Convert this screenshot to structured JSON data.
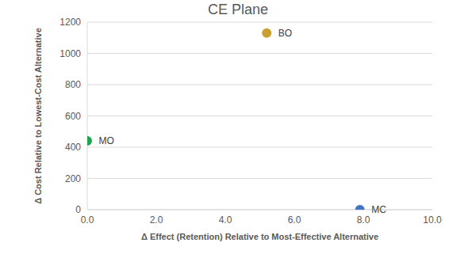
{
  "chart_data": {
    "type": "scatter",
    "title": "CE Plane",
    "x_label": "Δ Effect (Retention) Relative to Most-Effective Alternative",
    "y_label": "Δ Cost Relative to Lowest-Cost Alternative",
    "series": [
      {
        "name": "MO",
        "color": "#21a450",
        "x": [
          0.0
        ],
        "values": [
          440
        ]
      },
      {
        "name": "BO",
        "color": "#c9a030",
        "x": [
          5.2
        ],
        "values": [
          1130
        ]
      },
      {
        "name": "MC",
        "color": "#4472c4",
        "x": [
          7.9
        ],
        "values": [
          0
        ]
      }
    ],
    "xlim": [
      0,
      10
    ],
    "xticks": [
      {
        "value": 0,
        "label": "0.0"
      },
      {
        "value": 2,
        "label": "2.0"
      },
      {
        "value": 4,
        "label": "4.0"
      },
      {
        "value": 6,
        "label": "6.0"
      },
      {
        "value": 8,
        "label": "8.0"
      },
      {
        "value": 10,
        "label": "10.0"
      }
    ],
    "ylim": [
      0,
      1200
    ],
    "yticks": [
      0,
      200,
      400,
      600,
      800,
      1000,
      1200
    ],
    "grid": true
  }
}
